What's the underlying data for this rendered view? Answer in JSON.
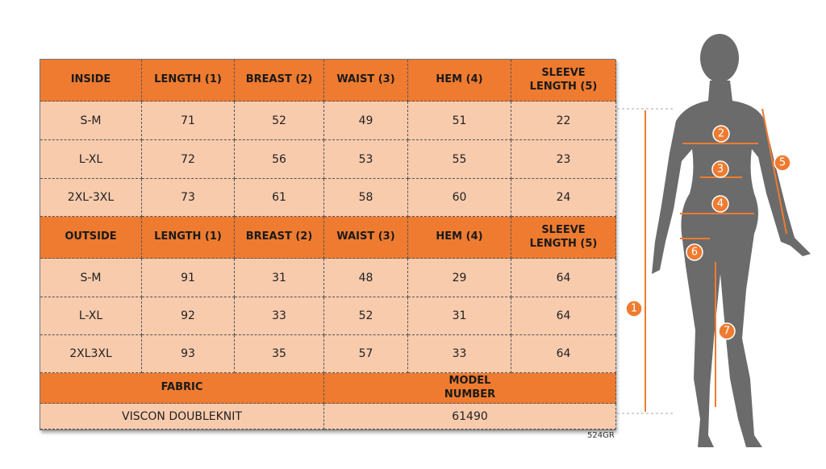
{
  "inside": {
    "header": [
      "INSIDE",
      "LENGTH (1)",
      "BREAST (2)",
      "WAIST (3)",
      "HEM (4)",
      "SLEEVE LENGTH (5)"
    ],
    "rows": [
      [
        "S-M",
        71,
        52,
        49,
        51,
        22
      ],
      [
        "L-XL",
        72,
        56,
        53,
        55,
        23
      ],
      [
        "2XL-3XL",
        73,
        61,
        58,
        60,
        24
      ]
    ]
  },
  "outside": {
    "header": [
      "OUTSIDE",
      "LENGTH (1)",
      "BREAST (2)",
      "WAIST (3)",
      "HEM (4)",
      "SLEEVE LENGTH (5)"
    ],
    "rows": [
      [
        "S-M",
        91,
        31,
        48,
        29,
        64
      ],
      [
        "L-XL",
        92,
        33,
        52,
        31,
        64
      ],
      [
        "2XL3XL",
        93,
        35,
        57,
        33,
        64
      ]
    ]
  },
  "fabric": {
    "label": "FABRIC",
    "value": "VISCON DOUBLEKNIT"
  },
  "model": {
    "label": "MODEL NUMBER",
    "value": "61490"
  },
  "code": "524GR",
  "figure": {
    "markers": [
      "1",
      "2",
      "3",
      "4",
      "5",
      "6",
      "7"
    ]
  }
}
